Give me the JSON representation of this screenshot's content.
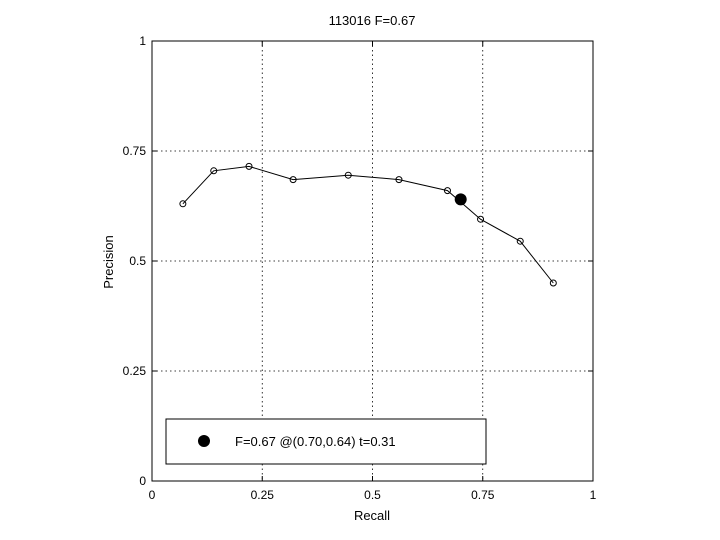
{
  "chart_data": {
    "type": "line",
    "title": "113016 F=0.67",
    "xlabel": "Recall",
    "ylabel": "Precision",
    "xlim": [
      0,
      1
    ],
    "ylim": [
      0,
      1
    ],
    "xticks": [
      "0",
      "0.25",
      "0.5",
      "0.75",
      "1"
    ],
    "yticks": [
      "0",
      "0.25",
      "0.5",
      "0.75",
      "1"
    ],
    "xtick_values": [
      0,
      0.25,
      0.5,
      0.75,
      1
    ],
    "ytick_values": [
      0,
      0.25,
      0.5,
      0.75,
      1
    ],
    "grid": true,
    "legend_position": "bottom-left",
    "series": [
      {
        "x": [
          0.07,
          0.14,
          0.22,
          0.32,
          0.445,
          0.56,
          0.67,
          0.745,
          0.835,
          0.91
        ],
        "y": [
          0.63,
          0.705,
          0.715,
          0.685,
          0.695,
          0.685,
          0.66,
          0.595,
          0.545,
          0.45
        ]
      }
    ],
    "best_point": {
      "x": 0.7,
      "y": 0.64,
      "label": "F=0.67 @(0.70,0.64) t=0.31"
    }
  }
}
